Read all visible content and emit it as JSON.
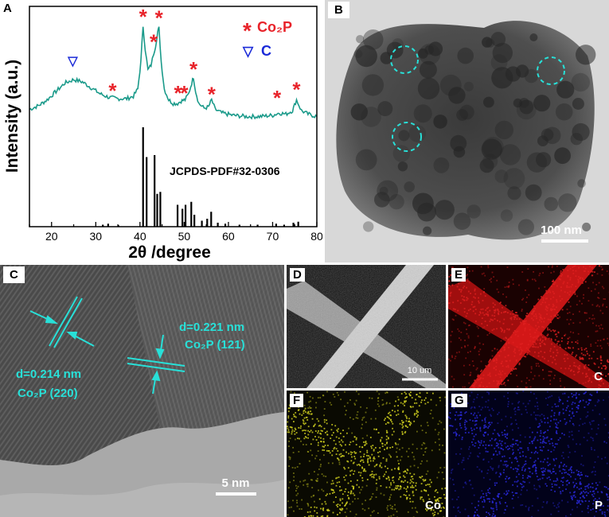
{
  "panels": {
    "A": {
      "label": "A"
    },
    "B": {
      "label": "B",
      "scale_bar": "100 nm"
    },
    "C": {
      "label": "C",
      "scale_bar": "5 nm",
      "annot1": {
        "d": "d=0.214 nm",
        "phase": "Co₂P (220)"
      },
      "annot2": {
        "d": "d=0.221 nm",
        "phase": "Co₂P (121)"
      }
    },
    "D": {
      "label": "D",
      "scale_bar": "10 um"
    },
    "E": {
      "label": "E",
      "element": "C"
    },
    "F": {
      "label": "F",
      "element": "Co"
    },
    "G": {
      "label": "G",
      "element": "P"
    }
  },
  "colors": {
    "xrd_curve": "#1a9a8a",
    "peak_star": "#e8232a",
    "carbon_marker": "#1a2ad8",
    "annotation": "#28e0d8"
  },
  "chart_data": {
    "type": "line",
    "xlabel": "2θ /degree",
    "ylabel": "Intensity (a.u.)",
    "xlim": [
      15,
      80
    ],
    "xticks": [
      20,
      30,
      40,
      50,
      60,
      70,
      80
    ],
    "legend": [
      {
        "symbol": "*",
        "name": "Co₂P"
      },
      {
        "symbol": "▽",
        "name": "C"
      }
    ],
    "legend_position": "top-right",
    "reference_label": "JCPDS-PDF#32-0306",
    "series": [
      {
        "x": [
          15,
          17,
          19,
          21,
          23,
          25,
          27,
          29,
          31,
          33,
          35,
          37,
          38.5,
          39.5,
          40.2,
          40.7,
          41.2,
          41.8,
          42.5,
          43.1,
          43.5,
          44.0,
          44.3,
          44.8,
          45.5,
          46.5,
          47.5,
          48.5,
          49.3,
          50.2,
          51.0,
          51.7,
          52.1,
          52.6,
          53.3,
          54.5,
          55.5,
          56.2,
          57.0,
          58.5,
          61,
          64,
          67,
          70,
          71.5,
          73,
          74.5,
          75.4,
          76.5,
          78,
          80
        ],
        "y": [
          0.25,
          0.28,
          0.33,
          0.4,
          0.47,
          0.5,
          0.48,
          0.43,
          0.38,
          0.35,
          0.34,
          0.34,
          0.36,
          0.42,
          0.65,
          0.95,
          0.75,
          0.58,
          0.62,
          0.72,
          0.78,
          0.9,
          0.93,
          0.65,
          0.42,
          0.33,
          0.3,
          0.3,
          0.32,
          0.33,
          0.38,
          0.47,
          0.52,
          0.4,
          0.3,
          0.26,
          0.27,
          0.33,
          0.25,
          0.22,
          0.2,
          0.19,
          0.19,
          0.2,
          0.22,
          0.21,
          0.24,
          0.33,
          0.24,
          0.21,
          0.19
        ]
      }
    ],
    "reference_lines": [
      {
        "x": 40.7,
        "h": 1.0
      },
      {
        "x": 41.5,
        "h": 0.7
      },
      {
        "x": 43.3,
        "h": 0.72
      },
      {
        "x": 43.9,
        "h": 0.33
      },
      {
        "x": 44.6,
        "h": 0.35
      },
      {
        "x": 48.5,
        "h": 0.22
      },
      {
        "x": 49.6,
        "h": 0.18
      },
      {
        "x": 50.3,
        "h": 0.22
      },
      {
        "x": 51.6,
        "h": 0.25
      },
      {
        "x": 52.3,
        "h": 0.12
      },
      {
        "x": 54.0,
        "h": 0.06
      },
      {
        "x": 55.2,
        "h": 0.08
      },
      {
        "x": 56.1,
        "h": 0.15
      },
      {
        "x": 57.6,
        "h": 0.04
      },
      {
        "x": 31.6,
        "h": 0.02
      },
      {
        "x": 32.8,
        "h": 0.03
      },
      {
        "x": 35.1,
        "h": 0.015
      },
      {
        "x": 59.3,
        "h": 0.03
      },
      {
        "x": 62.5,
        "h": 0.02
      },
      {
        "x": 66.6,
        "h": 0.02
      },
      {
        "x": 70.8,
        "h": 0.03
      },
      {
        "x": 72.6,
        "h": 0.02
      },
      {
        "x": 74.7,
        "h": 0.04
      },
      {
        "x": 75.8,
        "h": 0.05
      }
    ],
    "peak_markers": [
      {
        "symbol": "▽",
        "x": 24.8,
        "y": 0.62
      },
      {
        "symbol": "*",
        "x": 33.8,
        "y": 0.44
      },
      {
        "symbol": "*",
        "x": 40.7,
        "y": 1.06
      },
      {
        "symbol": "*",
        "x": 43.1,
        "y": 0.85
      },
      {
        "symbol": "*",
        "x": 44.3,
        "y": 1.05
      },
      {
        "symbol": "*",
        "x": 48.6,
        "y": 0.42
      },
      {
        "symbol": "*",
        "x": 50.0,
        "y": 0.42
      },
      {
        "symbol": "*",
        "x": 52.1,
        "y": 0.62
      },
      {
        "symbol": "*",
        "x": 56.2,
        "y": 0.41
      },
      {
        "symbol": "*",
        "x": 71.0,
        "y": 0.38
      },
      {
        "symbol": "*",
        "x": 75.4,
        "y": 0.45
      }
    ]
  }
}
